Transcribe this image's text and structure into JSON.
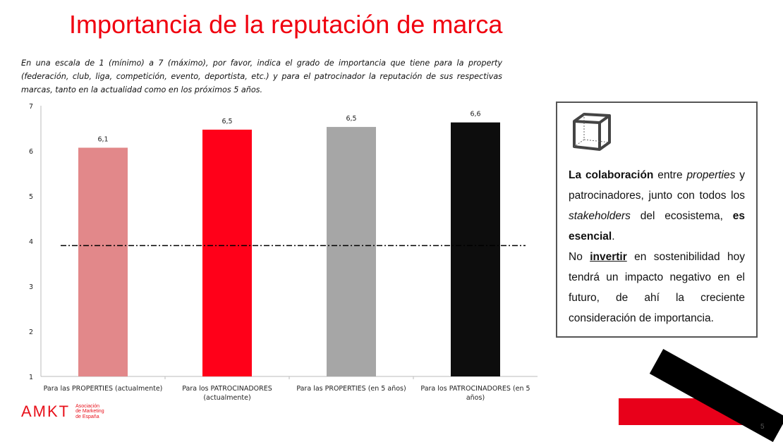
{
  "slide": {
    "title": "Importancia de la reputación de marca",
    "subtitle": "En una escala de 1 (mínimo) a 7 (máximo), por favor, indica el grado de importancia que tiene para la property (federación, club, liga, competición, evento, deportista, etc.) y para el patrocinador la reputación de sus respectivas marcas, tanto en la actualidad como en los próximos 5 años.",
    "page_number": "5"
  },
  "chart_data": {
    "type": "bar",
    "title": "",
    "xlabel": "",
    "ylabel": "",
    "ylim": [
      1,
      7
    ],
    "yticks": [
      "1",
      "2",
      "3",
      "4",
      "5",
      "6",
      "7"
    ],
    "categories": [
      [
        "Para las PROPERTIES (actualmente)"
      ],
      [
        "Para los PATROCINADORES",
        "(actualmente)"
      ],
      [
        "Para las PROPERTIES (en 5 años)"
      ],
      [
        "Para los PATROCINADORES (en 5",
        "años)"
      ]
    ],
    "values": [
      6.07,
      6.47,
      6.53,
      6.63
    ],
    "data_labels": [
      "6,1",
      "6,5",
      "6,5",
      "6,6"
    ],
    "colors": [
      "#e2888a",
      "#ff0019",
      "#a6a6a6",
      "#0d0d0d"
    ],
    "reference_line": {
      "value": 3.9,
      "style": "dash-dot"
    }
  },
  "sidebox": {
    "icon": "cube-icon",
    "p1_bold": "La colaboración",
    "p1_a": " entre ",
    "p1_italic": "properties",
    "p1_b": " y patrocinadores, junto con todos los ",
    "p1_italic2": "stakeholders",
    "p1_c": " del ecosistema, ",
    "p1_bold2": "es esencial",
    "p1_d": ".",
    "p2_a": "No ",
    "p2_bold": "invertir",
    "p2_b": " en sostenibilidad hoy tendrá un impacto negativo en el futuro, de ahí la creciente consideración de importancia."
  },
  "logo": {
    "mark": "AMKT",
    "line1": "Asociación",
    "line2": "de Marketing",
    "line3": "de España"
  }
}
